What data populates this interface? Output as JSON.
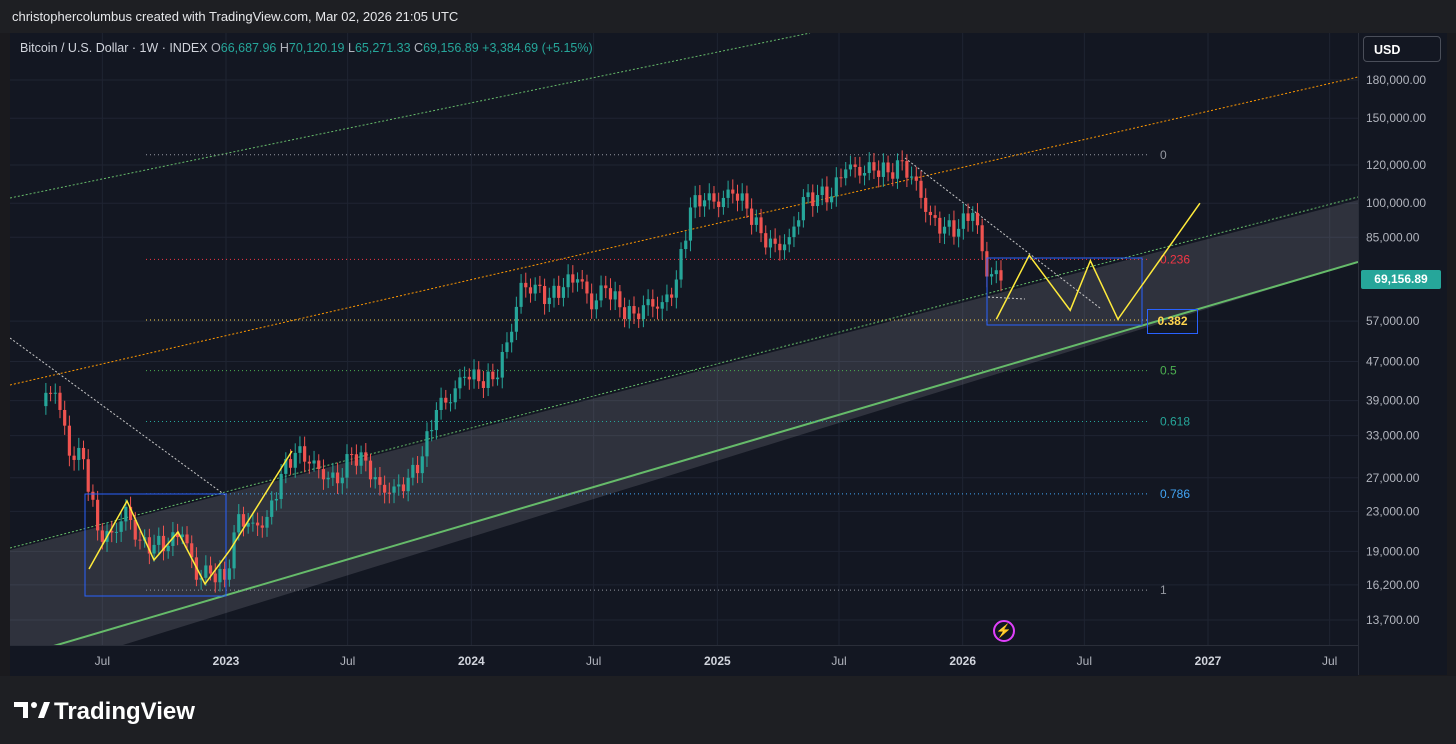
{
  "caption": "christophercolumbus created with TradingView.com, Mar 02, 2026 21:05 UTC",
  "legend": {
    "symbol": "Bitcoin / U.S. Dollar · 1W · INDEX",
    "open_label": "O",
    "open": "66,687.96",
    "high_label": "H",
    "high": "70,120.19",
    "low_label": "L",
    "low": "65,271.33",
    "close_label": "C",
    "close": "69,156.89",
    "change": "+3,384.69 (+5.15%)"
  },
  "currency_button": "USD",
  "last_price": "69,156.89",
  "brand": "TradingView",
  "alert_icon": "lightning-alert-icon",
  "colors": {
    "up": "#26a69a",
    "down": "#ef5350",
    "zigzag": "#ffeb3b",
    "fib_box": "#2962ff",
    "channel": "#4caf50",
    "orange_line": "#ff9800"
  },
  "chart_data": {
    "type": "candlestick",
    "scale": "log",
    "y_ticks": [
      "180,000.00",
      "150,000.00",
      "120,000.00",
      "100,000.00",
      "85,000.00",
      "57,000.00",
      "47,000.00",
      "39,000.00",
      "33,000.00",
      "27,000.00",
      "23,000.00",
      "19,000.00",
      "16,200.00",
      "13,700.00"
    ],
    "y_tick_values": [
      180000,
      150000,
      120000,
      100000,
      85000,
      57000,
      47000,
      39000,
      33000,
      27000,
      23000,
      19000,
      16200,
      13700
    ],
    "x_ticks": [
      "Jul",
      "2023",
      "Jul",
      "2024",
      "Jul",
      "2025",
      "Jul",
      "2026",
      "Jul",
      "2027",
      "Jul"
    ],
    "x_tick_dates": [
      "2022-07-01",
      "2023-01-01",
      "2023-07-01",
      "2024-01-01",
      "2024-07-01",
      "2025-01-01",
      "2025-07-01",
      "2026-01-01",
      "2026-07-01",
      "2027-01-01",
      "2027-07-01"
    ],
    "fib_levels": [
      {
        "label": "0",
        "price": 126000,
        "color": "#9598a1"
      },
      {
        "label": "0.236",
        "price": 76500,
        "color": "#f23645"
      },
      {
        "label": "0.382",
        "price": 57300,
        "color": "#ffd54f"
      },
      {
        "label": "0.5",
        "price": 45000,
        "color": "#4caf50"
      },
      {
        "label": "0.618",
        "price": 35300,
        "color": "#26a69a"
      },
      {
        "label": "0.786",
        "price": 25000,
        "color": "#42a5f5"
      },
      {
        "label": "1",
        "price": 15800,
        "color": "#9598a1"
      }
    ],
    "weekly_closes": [
      {
        "date": "2022-04-01",
        "close": 38000
      },
      {
        "date": "2022-04-22",
        "close": 40500
      },
      {
        "date": "2022-05-13",
        "close": 30000
      },
      {
        "date": "2022-06-03",
        "close": 29500
      },
      {
        "date": "2022-06-24",
        "close": 21000
      },
      {
        "date": "2022-07-15",
        "close": 20800
      },
      {
        "date": "2022-08-05",
        "close": 23500
      },
      {
        "date": "2022-08-26",
        "close": 20000
      },
      {
        "date": "2022-09-16",
        "close": 19600
      },
      {
        "date": "2022-10-07",
        "close": 19500
      },
      {
        "date": "2022-10-28",
        "close": 20600
      },
      {
        "date": "2022-11-18",
        "close": 16600
      },
      {
        "date": "2022-12-09",
        "close": 17100
      },
      {
        "date": "2022-12-30",
        "close": 16600
      },
      {
        "date": "2023-01-20",
        "close": 22700
      },
      {
        "date": "2023-02-10",
        "close": 21800
      },
      {
        "date": "2023-03-03",
        "close": 22400
      },
      {
        "date": "2023-03-24",
        "close": 27500
      },
      {
        "date": "2023-04-14",
        "close": 30400
      },
      {
        "date": "2023-05-05",
        "close": 28900
      },
      {
        "date": "2023-05-26",
        "close": 26800
      },
      {
        "date": "2023-06-16",
        "close": 26300
      },
      {
        "date": "2023-07-07",
        "close": 30200
      },
      {
        "date": "2023-07-28",
        "close": 29300
      },
      {
        "date": "2023-08-18",
        "close": 26100
      },
      {
        "date": "2023-09-08",
        "close": 25900
      },
      {
        "date": "2023-09-29",
        "close": 27000
      },
      {
        "date": "2023-10-20",
        "close": 29900
      },
      {
        "date": "2023-11-10",
        "close": 37300
      },
      {
        "date": "2023-12-01",
        "close": 38700
      },
      {
        "date": "2023-12-22",
        "close": 43700
      },
      {
        "date": "2024-01-12",
        "close": 42800
      },
      {
        "date": "2024-02-02",
        "close": 43200
      },
      {
        "date": "2024-02-23",
        "close": 51500
      },
      {
        "date": "2024-03-15",
        "close": 68400
      },
      {
        "date": "2024-04-05",
        "close": 67800
      },
      {
        "date": "2024-04-26",
        "close": 63700
      },
      {
        "date": "2024-05-17",
        "close": 67000
      },
      {
        "date": "2024-06-07",
        "close": 69600
      },
      {
        "date": "2024-06-28",
        "close": 60300
      },
      {
        "date": "2024-07-19",
        "close": 66700
      },
      {
        "date": "2024-08-09",
        "close": 60900
      },
      {
        "date": "2024-08-30",
        "close": 59100
      },
      {
        "date": "2024-09-20",
        "close": 63300
      },
      {
        "date": "2024-10-11",
        "close": 62400
      },
      {
        "date": "2024-11-01",
        "close": 69500
      },
      {
        "date": "2024-11-22",
        "close": 98000
      },
      {
        "date": "2024-12-13",
        "close": 101400
      },
      {
        "date": "2025-01-03",
        "close": 98200
      },
      {
        "date": "2025-01-24",
        "close": 104700
      },
      {
        "date": "2025-02-14",
        "close": 97500
      },
      {
        "date": "2025-03-07",
        "close": 86700
      },
      {
        "date": "2025-03-28",
        "close": 82400
      },
      {
        "date": "2025-04-18",
        "close": 85100
      },
      {
        "date": "2025-05-09",
        "close": 103000
      },
      {
        "date": "2025-05-30",
        "close": 104000
      },
      {
        "date": "2025-06-20",
        "close": 103300
      },
      {
        "date": "2025-07-11",
        "close": 117500
      },
      {
        "date": "2025-08-01",
        "close": 114100
      },
      {
        "date": "2025-08-22",
        "close": 116900
      },
      {
        "date": "2025-09-12",
        "close": 115900
      },
      {
        "date": "2025-10-03",
        "close": 122300
      },
      {
        "date": "2025-10-24",
        "close": 111300
      },
      {
        "date": "2025-11-14",
        "close": 94500
      },
      {
        "date": "2025-12-05",
        "close": 89400
      },
      {
        "date": "2025-12-26",
        "close": 88500
      },
      {
        "date": "2026-01-16",
        "close": 95500
      },
      {
        "date": "2026-02-06",
        "close": 70500
      },
      {
        "date": "2026-02-27",
        "close": 69157
      }
    ],
    "projection": [
      {
        "date": "2026-02-20",
        "price": 57500
      },
      {
        "date": "2026-04-10",
        "price": 78000
      },
      {
        "date": "2026-06-10",
        "price": 60000
      },
      {
        "date": "2026-07-10",
        "price": 76000
      },
      {
        "date": "2026-08-20",
        "price": 57500
      },
      {
        "date": "2026-12-20",
        "price": 100000
      }
    ]
  }
}
